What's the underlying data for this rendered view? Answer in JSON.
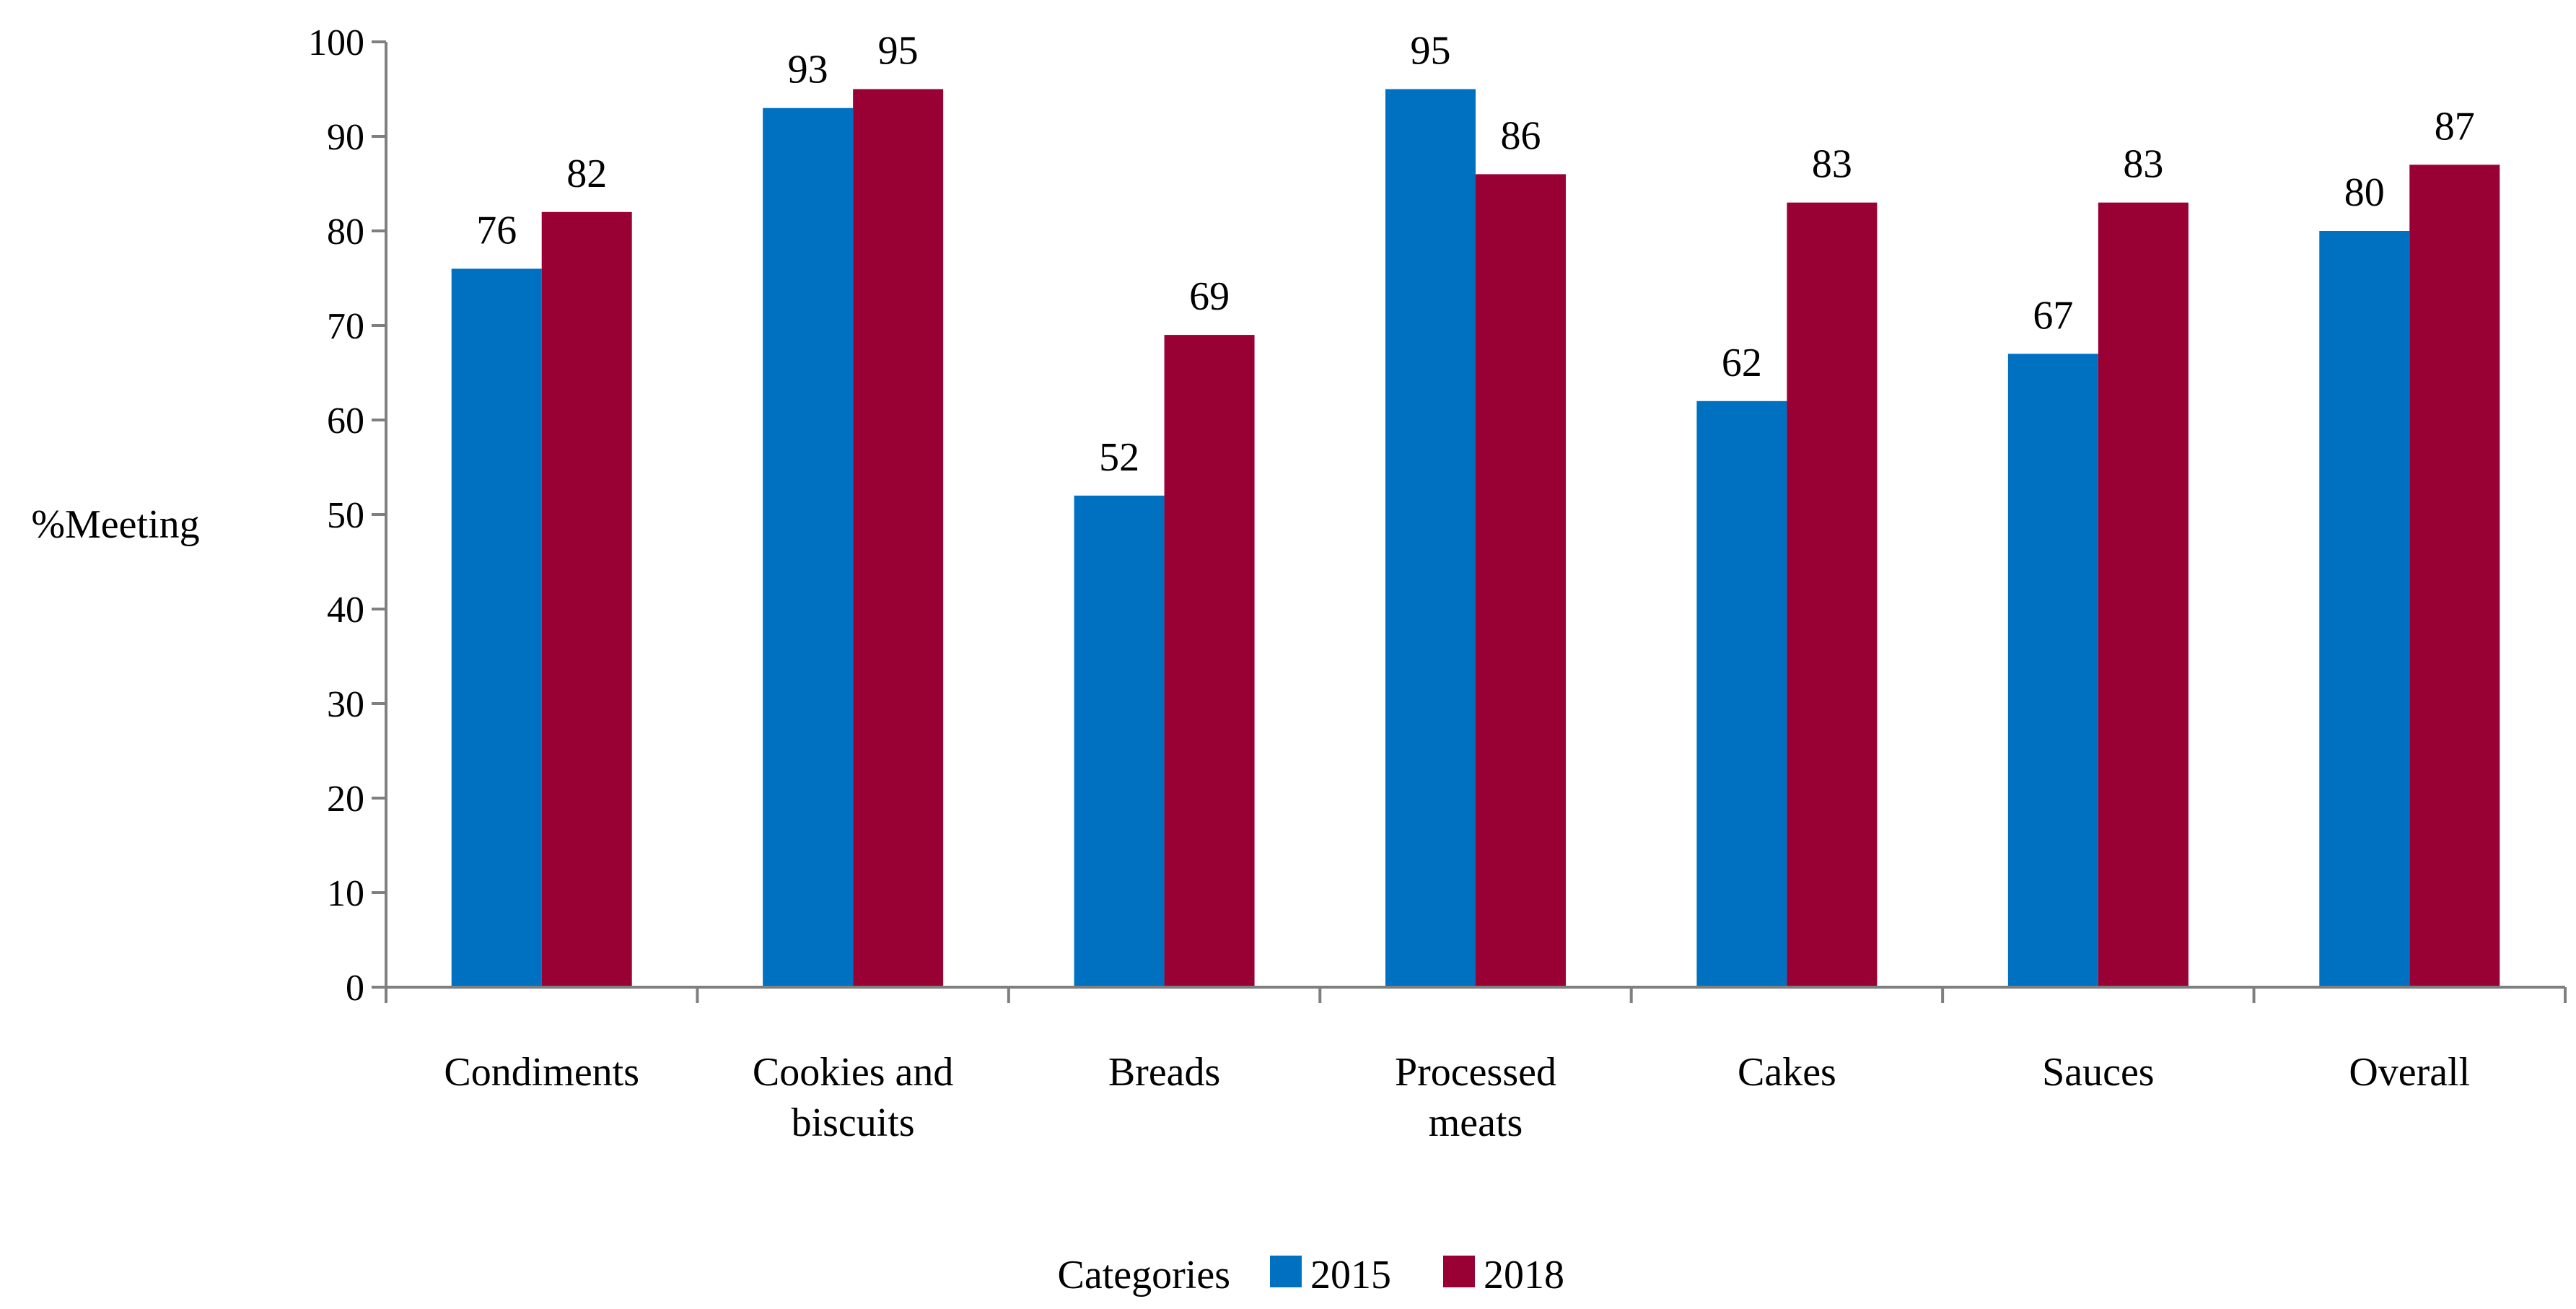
{
  "chart_data": {
    "type": "bar",
    "title": "",
    "xlabel": "",
    "ylabel": "%Meeting",
    "ylim": [
      0,
      100
    ],
    "yticks": [
      0,
      10,
      20,
      30,
      40,
      50,
      60,
      70,
      80,
      90,
      100
    ],
    "grid": false,
    "categories": [
      [
        "Condiments"
      ],
      [
        "Cookies and",
        "biscuits"
      ],
      [
        "Breads"
      ],
      [
        "Processed",
        "meats"
      ],
      [
        "Cakes"
      ],
      [
        "Sauces"
      ],
      [
        "Overall"
      ]
    ],
    "series": [
      {
        "name": "2015",
        "color": "#0070C0",
        "values": [
          76,
          93,
          52,
          95,
          62,
          67,
          80
        ]
      },
      {
        "name": "2018",
        "color": "#990033",
        "values": [
          82,
          95,
          69,
          86,
          83,
          83,
          87
        ]
      }
    ],
    "legend": {
      "title": "Categories",
      "placement": "bottom-center"
    }
  }
}
